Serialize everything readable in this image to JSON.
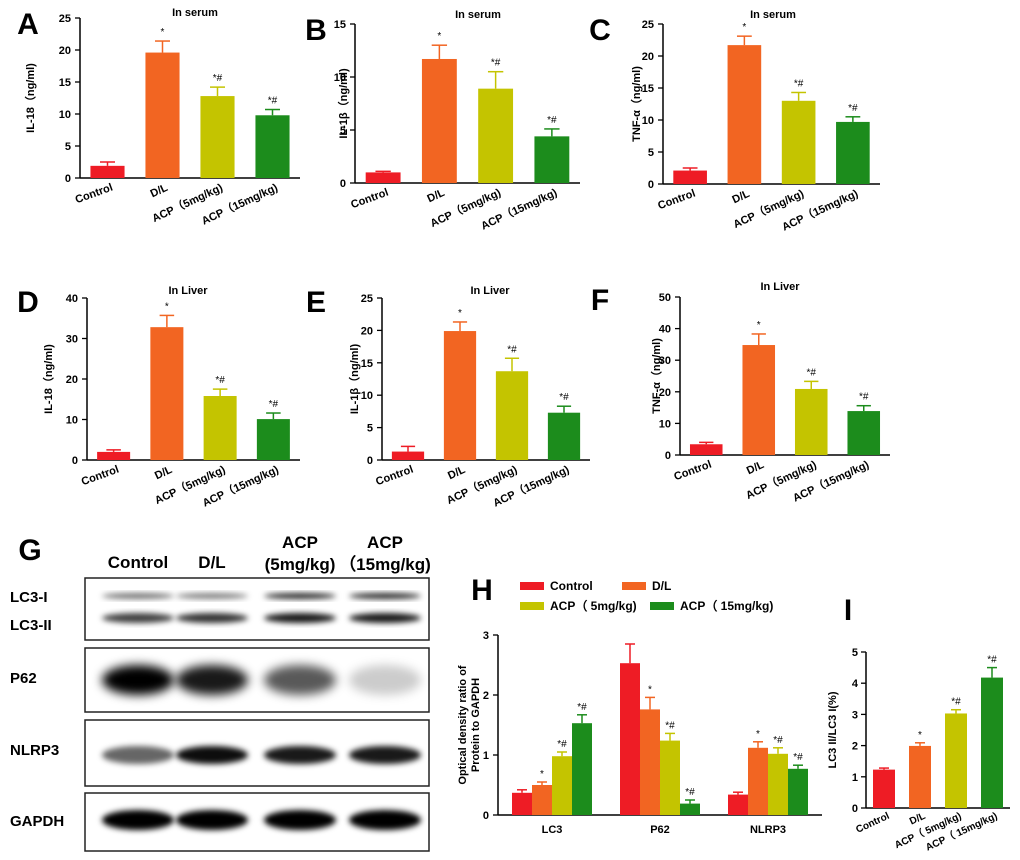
{
  "colors": {
    "control": "#ee1c25",
    "dl": "#f26522",
    "acp5": "#c4c400",
    "acp15": "#1c8c1c"
  },
  "groups": [
    "Control",
    "D/L",
    "ACP（5mg/kg)",
    "ACP（15mg/kg)"
  ],
  "panels": [
    {
      "label": "A",
      "title": "In serum",
      "ylabel": "IL-18（ng/ml)",
      "ylim": [
        0,
        25
      ],
      "ticks": [
        "0",
        "5",
        "10",
        "15",
        "20",
        "25"
      ],
      "values": [
        1.9,
        19.6,
        12.8,
        9.8
      ],
      "errors": [
        0.6,
        1.8,
        1.4,
        0.9
      ],
      "sig": [
        "",
        "*",
        "*#",
        "*#"
      ]
    },
    {
      "label": "B",
      "title": "In serum",
      "ylabel": "IL-1β（ng/ml)",
      "ylim": [
        0,
        15
      ],
      "ticks": [
        "0",
        "5",
        "10",
        "15"
      ],
      "values": [
        1.0,
        11.7,
        8.9,
        4.4
      ],
      "errors": [
        0.1,
        1.3,
        1.6,
        0.7
      ],
      "sig": [
        "",
        "*",
        "*#",
        "*#"
      ]
    },
    {
      "label": "C",
      "title": "In serum",
      "ylabel": "TNF-α（ng/ml)",
      "ylim": [
        0,
        25
      ],
      "ticks": [
        "0",
        "5",
        "10",
        "15",
        "20",
        "25"
      ],
      "values": [
        2.1,
        21.7,
        13.0,
        9.7
      ],
      "errors": [
        0.4,
        1.4,
        1.3,
        0.8
      ],
      "sig": [
        "",
        "*",
        "*#",
        "*#"
      ]
    },
    {
      "label": "D",
      "title": "In Liver",
      "ylabel": "IL-18（ng/ml)",
      "ylim": [
        0,
        40
      ],
      "ticks": [
        "0",
        "10",
        "20",
        "30",
        "40"
      ],
      "values": [
        2.0,
        32.8,
        15.8,
        10.1
      ],
      "errors": [
        0.5,
        2.9,
        1.7,
        1.5
      ],
      "sig": [
        "",
        "*",
        "*#",
        "*#"
      ]
    },
    {
      "label": "E",
      "title": "In Liver",
      "ylabel": "IL-1β（ng/ml)",
      "ylim": [
        0,
        25
      ],
      "ticks": [
        "0",
        "5",
        "10",
        "15",
        "20",
        "25"
      ],
      "values": [
        1.3,
        19.9,
        13.7,
        7.3
      ],
      "errors": [
        0.8,
        1.4,
        2.0,
        1.0
      ],
      "sig": [
        "",
        "*",
        "*#",
        "*#"
      ]
    },
    {
      "label": "F",
      "title": "In Liver",
      "ylabel": "TNF-α（ng/ml)",
      "ylim": [
        0,
        50
      ],
      "ticks": [
        "0",
        "10",
        "20",
        "30",
        "40",
        "50"
      ],
      "values": [
        3.4,
        34.8,
        20.9,
        13.9
      ],
      "errors": [
        0.6,
        3.5,
        2.4,
        1.7
      ],
      "sig": [
        "",
        "*",
        "*#",
        "*#"
      ]
    }
  ],
  "blot": {
    "label": "G",
    "headers": [
      "Control",
      "D/L",
      "ACP",
      "(5mg/kg)",
      "ACP",
      "（15mg/kg)"
    ],
    "rows": [
      "LC3-I",
      "LC3-II",
      "P62",
      "NLRP3",
      "GAPDH"
    ]
  },
  "chart_data": [
    {
      "type": "bar",
      "label": "H",
      "ylabel": "Optical density ratio of\nProtein to GAPDH",
      "ylim": [
        0,
        3
      ],
      "ticks": [
        "0",
        "1",
        "2",
        "3"
      ],
      "categories": [
        "LC3",
        "P62",
        "NLRP3"
      ],
      "legend": [
        "Control",
        "D/L",
        "ACP（ 5mg/kg)",
        "ACP（ 15mg/kg)"
      ],
      "series": [
        {
          "name": "Control",
          "values": [
            0.37,
            2.53,
            0.34
          ],
          "errors": [
            0.05,
            0.32,
            0.04
          ],
          "sig": [
            "",
            "",
            ""
          ]
        },
        {
          "name": "D/L",
          "values": [
            0.5,
            1.76,
            1.12
          ],
          "errors": [
            0.05,
            0.2,
            0.1
          ],
          "sig": [
            "*",
            "*",
            "*"
          ]
        },
        {
          "name": "ACP（ 5mg/kg)",
          "values": [
            0.98,
            1.24,
            1.02
          ],
          "errors": [
            0.07,
            0.12,
            0.1
          ],
          "sig": [
            "*#",
            "*#",
            "*#"
          ]
        },
        {
          "name": "ACP（ 15mg/kg)",
          "values": [
            1.53,
            0.19,
            0.77
          ],
          "errors": [
            0.14,
            0.06,
            0.06
          ],
          "sig": [
            "*#",
            "*#",
            "*#"
          ]
        }
      ]
    },
    {
      "type": "bar",
      "label": "I",
      "ylabel": "LC3 II/LC3 I(%)",
      "ylim": [
        0,
        5
      ],
      "ticks": [
        "0",
        "1",
        "2",
        "3",
        "4",
        "5"
      ],
      "categories": [
        "Control",
        "D/L",
        "ACP（ 5mg/kg)",
        "ACP（ 15mg/kg)"
      ],
      "values": [
        1.23,
        1.99,
        3.03,
        4.18
      ],
      "errors": [
        0.05,
        0.1,
        0.12,
        0.32
      ],
      "sig": [
        "",
        "*",
        "*#",
        "*#"
      ]
    }
  ]
}
